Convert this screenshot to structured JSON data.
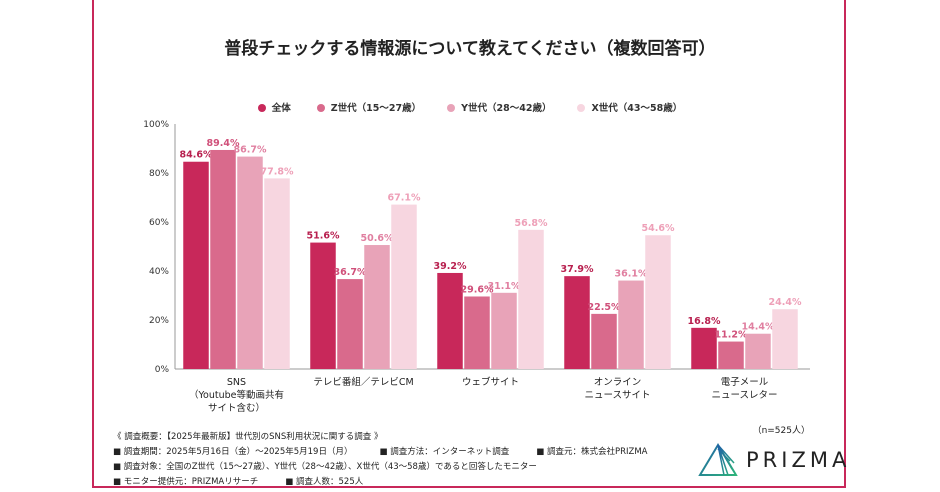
{
  "chart_data": {
    "type": "bar",
    "title": "普段チェックする情報源について教えてください（複数回答可）",
    "categories": [
      [
        "SNS",
        "（Youtube等動画共有",
        "サイト含む）"
      ],
      [
        "テレビ番組／テレビCM"
      ],
      [
        "ウェブサイト"
      ],
      [
        "オンライン",
        "ニュースサイト"
      ],
      [
        "電子メール",
        "ニュースレター"
      ]
    ],
    "series": [
      {
        "name": "全体",
        "color": "#c8285a",
        "label_color": "#b8204f",
        "values": [
          84.6,
          51.6,
          39.2,
          37.9,
          16.8
        ]
      },
      {
        "name": "Z世代（15〜27歳）",
        "color": "#d96a8c",
        "label_color": "#d0507a",
        "values": [
          89.4,
          36.7,
          29.6,
          22.5,
          11.2
        ]
      },
      {
        "name": "Y世代（28〜42歳）",
        "color": "#e8a3b8",
        "label_color": "#e07fa0",
        "values": [
          86.7,
          50.6,
          31.1,
          36.1,
          14.4
        ]
      },
      {
        "name": "X世代（43〜58歳）",
        "color": "#f7d6e0",
        "label_color": "#eea0b8",
        "values": [
          77.8,
          67.1,
          56.8,
          54.6,
          24.4
        ]
      }
    ],
    "yticks": [
      "0%",
      "20%",
      "40%",
      "60%",
      "80%",
      "100%"
    ],
    "ylim": [
      0,
      100
    ],
    "grid": false,
    "legend": "top-center",
    "value_suffix": "%"
  },
  "sample_note": "（n=525人）",
  "notes": [
    "《 調査概要：【2025年最新版】世代別のSNS利用状況に関する調査 》",
    "■ 調査期間：2025年5月16日（金）〜2025年5月19日（月）          ■ 調査方法：インターネット調査          ■ 調査元：株式会社PRIZMA",
    "■ 調査対象：全国のZ世代（15〜27歳）、Y世代（28〜42歳）、X世代（43〜58歳）であると回答したモニター",
    "■ モニター提供元：PRIZMAリサーチ          ■ 調査人数：525人"
  ],
  "logo": {
    "text": "PRIZMA"
  },
  "colors": {
    "frame": "#c8285a"
  }
}
